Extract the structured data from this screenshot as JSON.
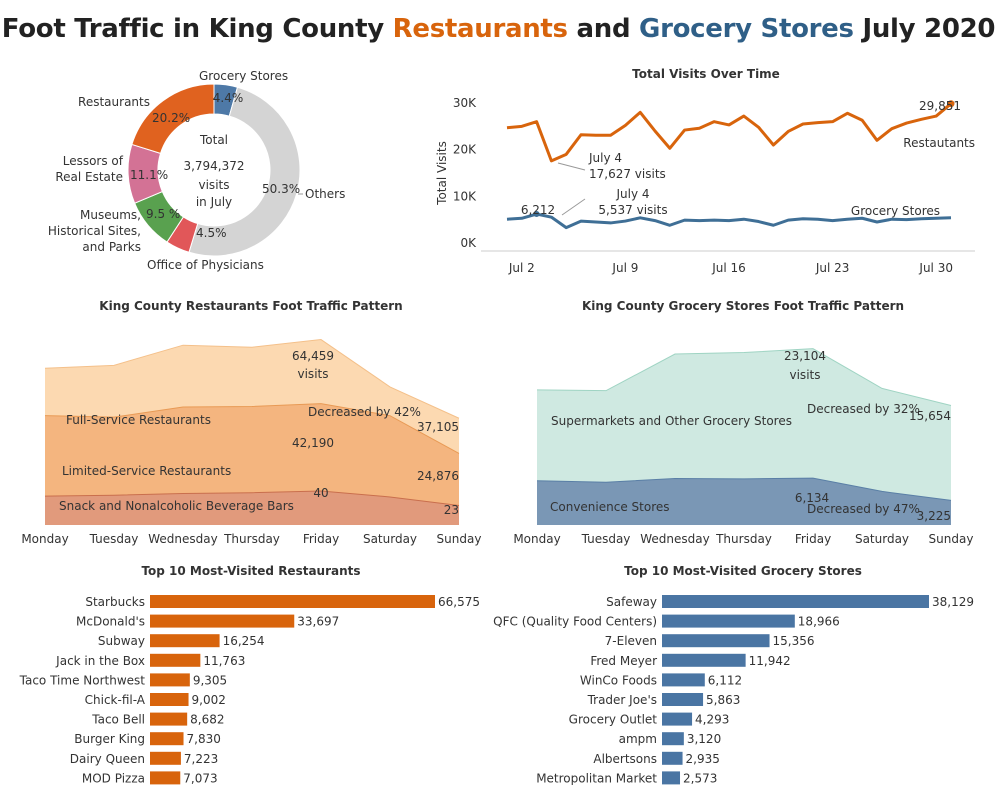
{
  "title": {
    "part1": "Foot Traffic in King County ",
    "restaurants": "Restaurants",
    "and": " and ",
    "grocery": "Grocery Stores",
    "part2": " July 2020"
  },
  "colors": {
    "restaurants": "#d8640c",
    "grocery": "#3f6f96",
    "bar_restaurants": "#d8640c",
    "bar_grocery": "#4a75a3"
  },
  "chart_data": [
    {
      "type": "pie",
      "center_text": [
        "Total",
        "3,794,372",
        "visits",
        "in July"
      ],
      "slices": [
        {
          "name": "Grocery Stores",
          "label": "4.4%",
          "value": 4.4,
          "color": "#4e79a7"
        },
        {
          "name": "Others",
          "label": "50.3%",
          "value": 50.3,
          "color": "#d4d4d4"
        },
        {
          "name": "Office of Physicians",
          "label": "4.5%",
          "value": 4.5,
          "color": "#e15759"
        },
        {
          "name": "Museums, Historical Sites, and Parks",
          "label": "9.5 %",
          "value": 9.5,
          "color": "#59a14f"
        },
        {
          "name": "Lessors of Real Estate",
          "label": "11.1%",
          "value": 11.1,
          "color": "#d37295"
        },
        {
          "name": "Restaurants",
          "label": "20.2%",
          "value": 20.2,
          "color": "#e0621f"
        }
      ]
    },
    {
      "type": "line",
      "title": "Total Visits Over Time",
      "ylabel": "Total Visits",
      "x_ticks": [
        "Jul 2",
        "Jul 9",
        "Jul 16",
        "Jul 23",
        "Jul 30"
      ],
      "x_tick_days": [
        2,
        9,
        16,
        23,
        30
      ],
      "y_ticks": [
        "0K",
        "10K",
        "20K",
        "30K"
      ],
      "ylim": [
        0,
        30000
      ],
      "series": [
        {
          "name": "Restautants",
          "x": [
            1,
            2,
            3,
            4,
            5,
            6,
            7,
            8,
            9,
            10,
            11,
            12,
            13,
            14,
            15,
            16,
            17,
            18,
            19,
            20,
            21,
            22,
            23,
            24,
            25,
            26,
            27,
            28,
            29,
            30,
            31
          ],
          "values": [
            24700,
            25000,
            26000,
            17600,
            19000,
            23200,
            23100,
            23100,
            25200,
            28000,
            24000,
            20300,
            24200,
            24600,
            26000,
            25300,
            27200,
            24800,
            21000,
            23900,
            25500,
            25800,
            26000,
            27800,
            26300,
            22000,
            24500,
            25700,
            26500,
            27200,
            29851
          ]
        },
        {
          "name": "Grocery Stores",
          "x": [
            1,
            2,
            3,
            4,
            5,
            6,
            7,
            8,
            9,
            10,
            11,
            12,
            13,
            14,
            15,
            16,
            17,
            18,
            19,
            20,
            21,
            22,
            23,
            24,
            25,
            26,
            27,
            28,
            29,
            30,
            31
          ],
          "values": [
            5100,
            5300,
            6212,
            5537,
            3300,
            4700,
            4500,
            4300,
            4700,
            5400,
            4800,
            3800,
            4900,
            4800,
            4900,
            4800,
            5100,
            4600,
            3800,
            4900,
            5200,
            5100,
            4800,
            5100,
            5300,
            4500,
            5100,
            5000,
            5200,
            5300,
            5400
          ]
        }
      ],
      "annotations": [
        {
          "text": "29,851"
        },
        {
          "text": "July 4"
        },
        {
          "text": "17,627 visits"
        },
        {
          "text": "6,212"
        },
        {
          "text": "July 4"
        },
        {
          "text": "5,537 visits"
        },
        {
          "text": "Restautants"
        },
        {
          "text": "Grocery Stores"
        }
      ]
    },
    {
      "type": "area",
      "title": "King County Restaurants Foot Traffic Pattern",
      "categories": [
        "Monday",
        "Tuesday",
        "Wednesday",
        "Thursday",
        "Friday",
        "Saturday",
        "Sunday"
      ],
      "series": [
        {
          "name": "Snack and Nonalcoholic Beverage Bars",
          "values": [
            34,
            35,
            37,
            38,
            40,
            33,
            23
          ],
          "color": "#e19a7c"
        },
        {
          "name": "Limited-Service Restaurants",
          "values": [
            38000,
            37500,
            41000,
            41200,
            42190,
            38000,
            24876
          ],
          "color": "#f4b57f"
        },
        {
          "name": "Full-Service Restaurants",
          "values": [
            54500,
            55500,
            62500,
            61800,
            64459,
            48000,
            37105
          ],
          "color": "#fcd9b1"
        }
      ],
      "annotations": [
        {
          "text": "64,459"
        },
        {
          "text": "visits"
        },
        {
          "text": "42,190"
        },
        {
          "text": "40"
        },
        {
          "text": "Decreased by 42%"
        },
        {
          "text": "37,105"
        },
        {
          "text": "24,876"
        },
        {
          "text": "23"
        }
      ]
    },
    {
      "type": "area",
      "title": "King County Grocery Stores Foot Traffic Pattern",
      "categories": [
        "Monday",
        "Tuesday",
        "Wednesday",
        "Thursday",
        "Friday",
        "Saturday",
        "Sunday"
      ],
      "series": [
        {
          "name": "Convenience Stores",
          "values": [
            5800,
            5600,
            6100,
            6050,
            6134,
            4400,
            3225
          ],
          "color": "#7a97b5"
        },
        {
          "name": "Supermarkets and Other Grocery Stores",
          "values": [
            17700,
            17600,
            22400,
            22600,
            23104,
            17900,
            15654
          ],
          "color": "#cfe9e1"
        }
      ],
      "annotations": [
        {
          "text": "23,104"
        },
        {
          "text": "visits"
        },
        {
          "text": "Decreased by 32%"
        },
        {
          "text": "15,654"
        },
        {
          "text": "6,134"
        },
        {
          "text": "Decreased by 47%"
        },
        {
          "text": "3,225"
        }
      ]
    },
    {
      "type": "bar",
      "title": "Top 10 Most-Visited Restaurants",
      "categories": [
        "Starbucks",
        "McDonald's",
        "Subway",
        "Jack in the Box",
        "Taco Time Northwest",
        "Chick-fil-A",
        "Taco Bell",
        "Burger King",
        "Dairy Queen",
        "MOD Pizza"
      ],
      "values": [
        66575,
        33697,
        16254,
        11763,
        9305,
        9002,
        8682,
        7830,
        7223,
        7073
      ],
      "value_labels": [
        "66,575",
        "33,697",
        "16,254",
        "11,763",
        "9,305",
        "9,002",
        "8,682",
        "7,830",
        "7,223",
        "7,073"
      ]
    },
    {
      "type": "bar",
      "title": "Top 10 Most-Visited Grocery Stores",
      "categories": [
        "Safeway",
        "QFC (Quality Food Centers)",
        "7-Eleven",
        "Fred Meyer",
        "WinCo Foods",
        "Trader Joe's",
        "Grocery Outlet",
        "ampm",
        "Albertsons",
        "Metropolitan Market"
      ],
      "values": [
        38129,
        18966,
        15356,
        11942,
        6112,
        5863,
        4293,
        3120,
        2935,
        2573
      ],
      "value_labels": [
        "38,129",
        "18,966",
        "15,356",
        "11,942",
        "6,112",
        "5,863",
        "4,293",
        "3,120",
        "2,935",
        "2,573"
      ]
    }
  ]
}
